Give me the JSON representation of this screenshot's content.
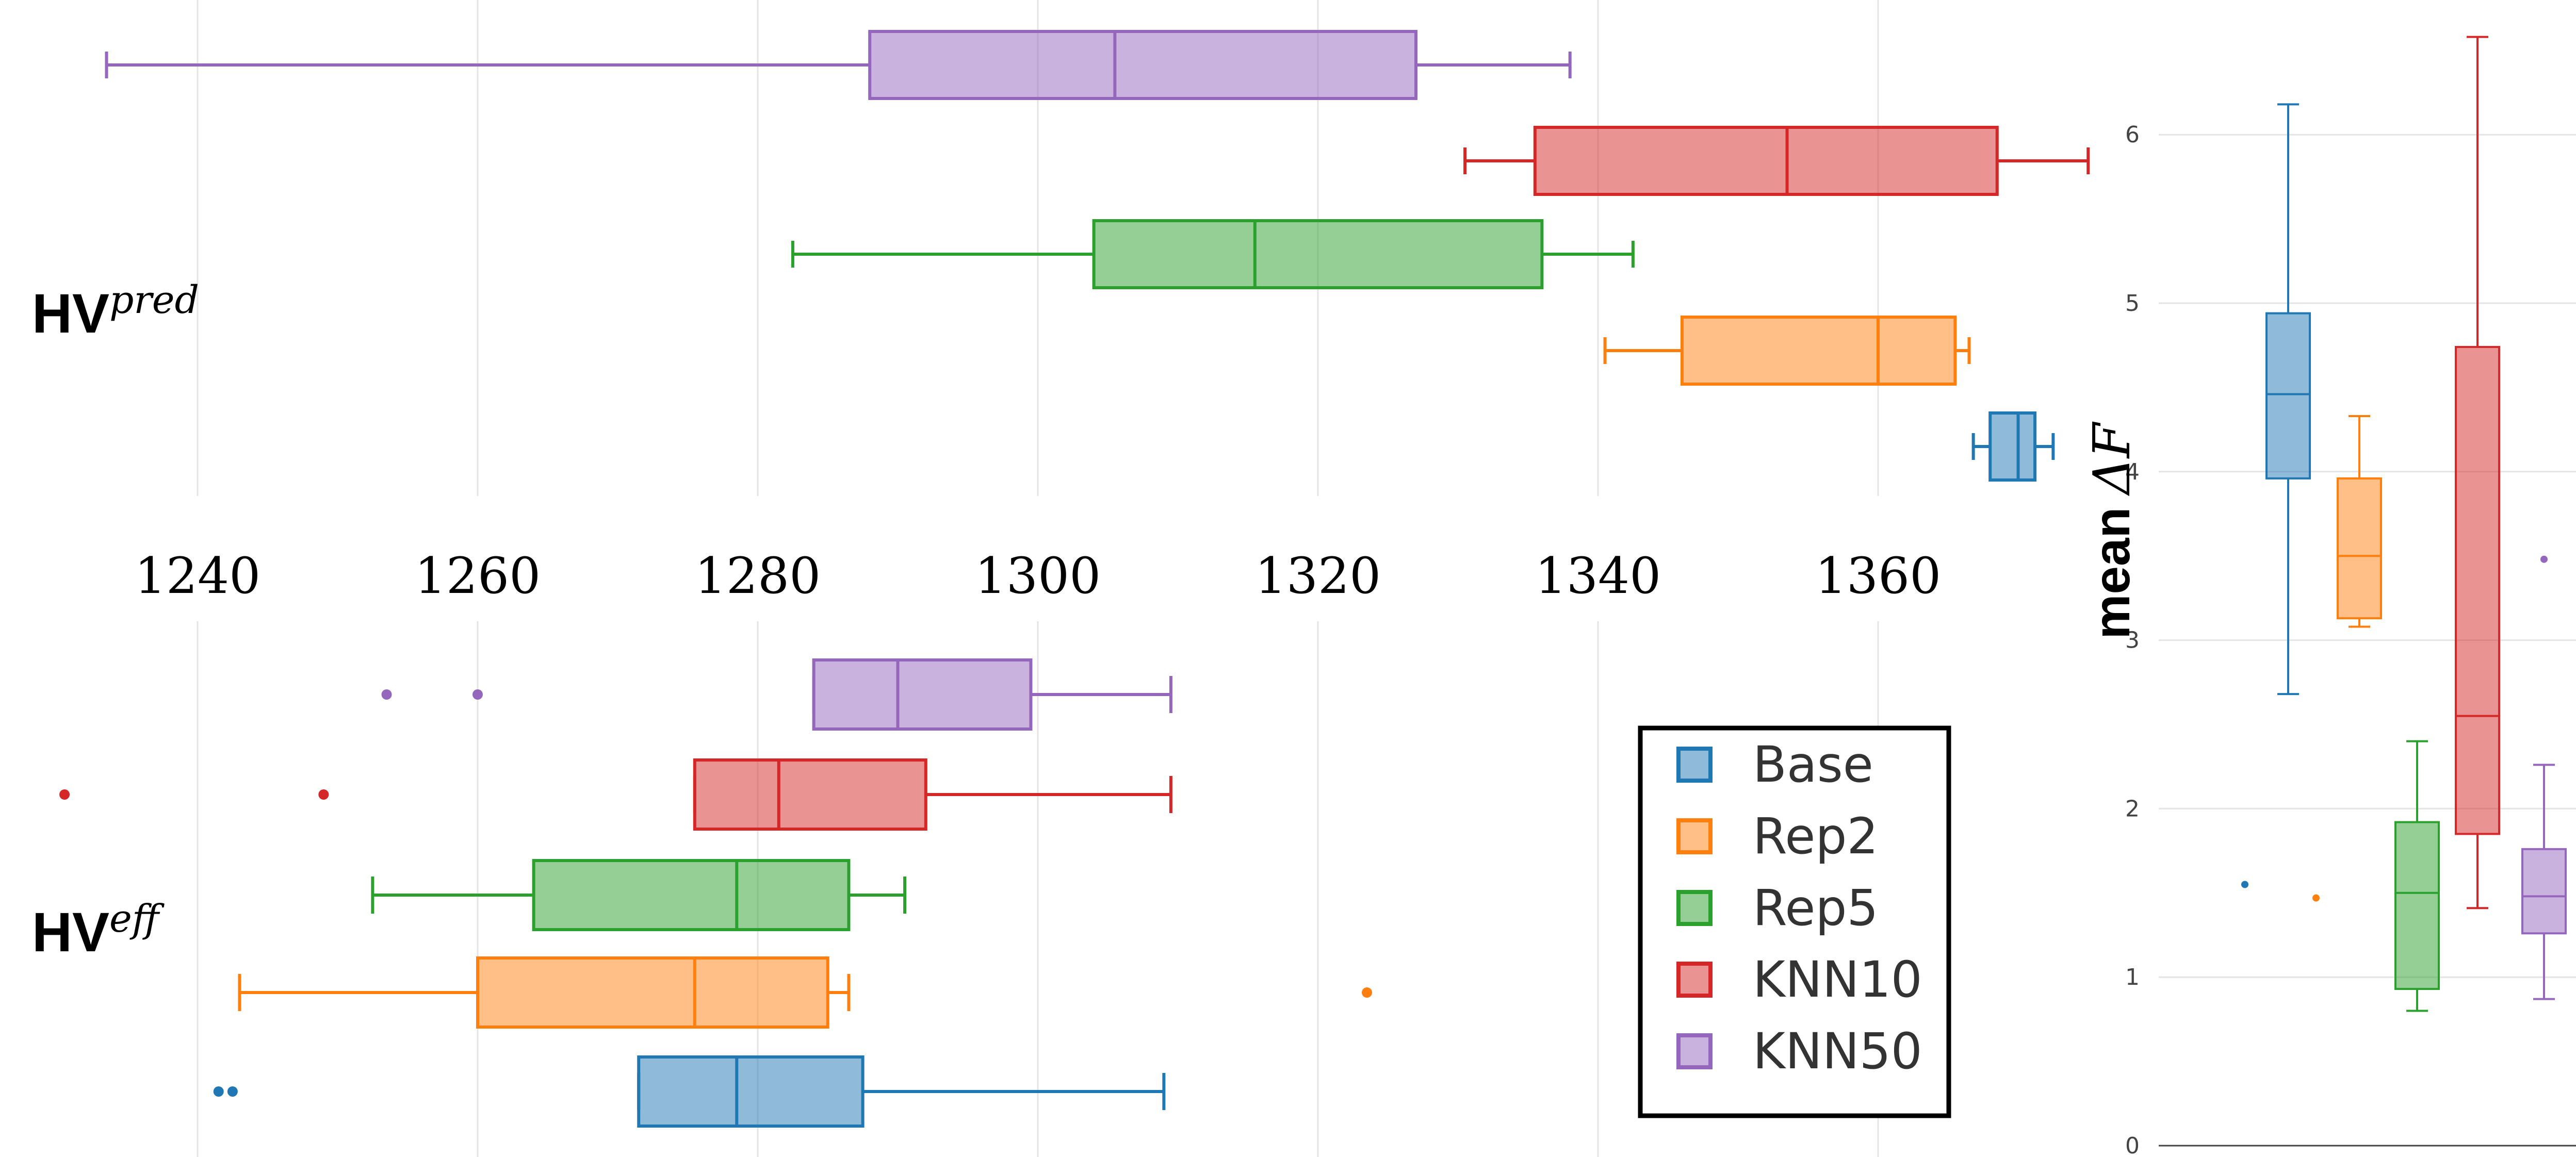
{
  "groups": [
    "Base",
    "Rep2",
    "Rep5",
    "KNN10",
    "KNN50"
  ],
  "colors": {
    "Base": "#1f77b4",
    "Rep2": "#ff7f0e",
    "Rep5": "#2ca02c",
    "KNN10": "#d62728",
    "KNN50": "#9467bd"
  },
  "legend": {
    "entries": [
      "Base",
      "Rep2",
      "Rep5",
      "KNN10",
      "KNN50"
    ],
    "placement": "lower-center"
  },
  "chart_data": [
    {
      "type": "box",
      "orientation": "horizontal",
      "label_base": "HV",
      "label_sup": "pred",
      "x_ticks": [
        1240,
        1260,
        1280,
        1300,
        1320,
        1340,
        1360
      ],
      "xlim": [
        1230,
        1383
      ],
      "grid": true,
      "boxes": [
        {
          "name": "KNN50",
          "min": 1233.5,
          "q1": 1288,
          "median": 1305.5,
          "q3": 1327,
          "max": 1338,
          "outliers": []
        },
        {
          "name": "KNN10",
          "min": 1330.5,
          "q1": 1335.5,
          "median": 1353.5,
          "q3": 1368.5,
          "max": 1375,
          "outliers": []
        },
        {
          "name": "Rep5",
          "min": 1282.5,
          "q1": 1304,
          "median": 1315.5,
          "q3": 1336,
          "max": 1342.5,
          "outliers": []
        },
        {
          "name": "Rep2",
          "min": 1340.5,
          "q1": 1346,
          "median": 1360,
          "q3": 1365.5,
          "max": 1366.5,
          "outliers": []
        },
        {
          "name": "Base",
          "min": 1366.8,
          "q1": 1368,
          "median": 1370,
          "q3": 1371.2,
          "max": 1372.5,
          "outliers": []
        }
      ]
    },
    {
      "type": "box",
      "orientation": "horizontal",
      "label_base": "HV",
      "label_sup": "eff",
      "x_ticks": [],
      "xlim": [
        1230,
        1383
      ],
      "grid": true,
      "boxes": [
        {
          "name": "KNN50",
          "min": 1284,
          "q1": 1284,
          "median": 1290,
          "q3": 1299.5,
          "max": 1309.5,
          "outliers": [
            1253.5,
            1260
          ]
        },
        {
          "name": "KNN10",
          "min": 1275.5,
          "q1": 1275.5,
          "median": 1281.5,
          "q3": 1292,
          "max": 1309.5,
          "outliers": [
            1230.5,
            1249
          ]
        },
        {
          "name": "Rep5",
          "min": 1252.5,
          "q1": 1264,
          "median": 1278.5,
          "q3": 1286.5,
          "max": 1290.5,
          "outliers": []
        },
        {
          "name": "Rep2",
          "min": 1243,
          "q1": 1260,
          "median": 1275.5,
          "q3": 1285,
          "max": 1286.5,
          "outliers": [
            1323.5
          ]
        },
        {
          "name": "Base",
          "min": 1271.5,
          "q1": 1271.5,
          "median": 1278.5,
          "q3": 1287.5,
          "max": 1309,
          "outliers": [
            1241.5,
            1242.5
          ]
        }
      ]
    },
    {
      "type": "box",
      "orientation": "vertical",
      "ylabel_text": "mean",
      "ylabel_math": "ΔF",
      "y_ticks": [
        0,
        1,
        2,
        3,
        4,
        5,
        6
      ],
      "ylim": [
        0,
        6.8
      ],
      "grid": true,
      "boxes": [
        {
          "name": "Base",
          "min": 2.68,
          "q1": 3.96,
          "median": 4.46,
          "q3": 4.94,
          "max": 6.18,
          "outliers": [
            1.55
          ]
        },
        {
          "name": "Rep2",
          "min": 3.08,
          "q1": 3.13,
          "median": 3.5,
          "q3": 3.96,
          "max": 4.33,
          "outliers": [
            1.47
          ]
        },
        {
          "name": "Rep5",
          "min": 0.8,
          "q1": 0.93,
          "median": 1.5,
          "q3": 1.92,
          "max": 2.4,
          "outliers": []
        },
        {
          "name": "KNN10",
          "min": 1.41,
          "q1": 1.85,
          "median": 2.55,
          "q3": 4.74,
          "max": 6.58,
          "outliers": []
        },
        {
          "name": "KNN50",
          "min": 0.87,
          "q1": 1.26,
          "median": 1.48,
          "q3": 1.76,
          "max": 2.26,
          "outliers": [
            3.48
          ]
        }
      ]
    }
  ]
}
